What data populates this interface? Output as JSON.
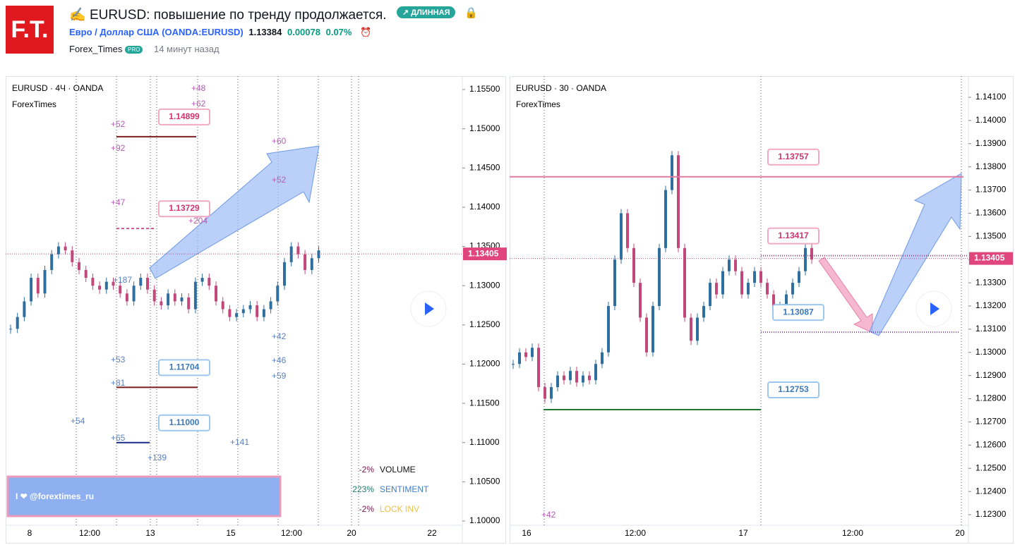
{
  "header": {
    "logo": "F.T.",
    "title": "EURUSD: повышение по тренду продолжается.",
    "badge": "ДЛИННАЯ",
    "symbol_name": "Евро / Доллар США",
    "symbol_code": "(OANDA:EURUSD)",
    "price": "1.13384",
    "change": "0.00078",
    "change_pct": "0.07%",
    "author": "Forex_Times",
    "author_badge": "PRO",
    "time_ago": "14 минут назад"
  },
  "chart_data": [
    {
      "type": "candlestick",
      "title": "EURUSD · 4Ч · OANDA",
      "subtitle": "ForexTimes",
      "ylim": [
        1.1,
        1.155
      ],
      "yticks": [
        {
          "value": 1.155,
          "label": "1.15500"
        },
        {
          "value": 1.15,
          "label": "1.15000"
        },
        {
          "value": 1.145,
          "label": "1.14500"
        },
        {
          "value": 1.14,
          "label": "1.14000"
        },
        {
          "value": 1.135,
          "label": "1.13500"
        },
        {
          "value": 1.13,
          "label": "1.13000"
        },
        {
          "value": 1.125,
          "label": "1.12500"
        },
        {
          "value": 1.12,
          "label": "1.12000"
        },
        {
          "value": 1.115,
          "label": "1.11500"
        },
        {
          "value": 1.11,
          "label": "1.11000"
        },
        {
          "value": 1.105,
          "label": "1.10500"
        },
        {
          "value": 1.1,
          "label": "1.10000"
        }
      ],
      "xlabels": [
        "8",
        "12:00",
        "13",
        "15",
        "12:00",
        "20",
        "22"
      ],
      "current_price": 1.13405,
      "up_color": "#2f6f9f",
      "down_color": "#c2477a",
      "values": [
        1.1245,
        1.126,
        1.128,
        1.131,
        1.129,
        1.132,
        1.134,
        1.135,
        1.1345,
        1.133,
        1.132,
        1.131,
        1.13,
        1.1295,
        1.1305,
        1.13,
        1.129,
        1.128,
        1.13,
        1.131,
        1.1295,
        1.128,
        1.1275,
        1.129,
        1.128,
        1.1285,
        1.127,
        1.1305,
        1.131,
        1.13,
        1.128,
        1.127,
        1.126,
        1.1265,
        1.127,
        1.1275,
        1.126,
        1.127,
        1.128,
        1.13,
        1.133,
        1.135,
        1.134,
        1.132,
        1.1335,
        1.1345
      ],
      "levels": [
        {
          "value": 1.14899,
          "color": "#7b1e1e"
        },
        {
          "value": 1.13729,
          "color": "#d0578a"
        },
        {
          "value": 1.11704,
          "color": "#7b1e1e"
        },
        {
          "value": {
            "value": 1.11,
            "label": "1.11000"
          },
          "color": "#1a2a8a"
        }
      ],
      "annotations": [
        "+52",
        "+92",
        "+47",
        "+48",
        "+62",
        "+60",
        "+52",
        "+204",
        "+187",
        "+42",
        "+46",
        "+59",
        "+53",
        "+81",
        "+54",
        "+65",
        "+139",
        "+141"
      ],
      "stats": [
        {
          "pct": "-2%",
          "name": "VOLUME"
        },
        {
          "pct": "223%",
          "name": "SENTIMENT"
        },
        {
          "pct": "-2%",
          "name": "LOCK INV"
        }
      ],
      "watermark": "I ❤ @forextimes_ru"
    },
    {
      "type": "candlestick",
      "title": "EURUSD · 30 · OANDA",
      "subtitle": "ForexTimes",
      "ylim": [
        1.123,
        1.141
      ],
      "yticks": [
        {
          "value": 1.141,
          "label": "1.14100"
        },
        {
          "value": 1.14,
          "label": "1.14000"
        },
        {
          "value": 1.139,
          "label": "1.13900"
        },
        {
          "value": 1.138,
          "label": "1.13800"
        },
        {
          "value": 1.137,
          "label": "1.13700"
        },
        {
          "value": 1.136,
          "label": "1.13600"
        },
        {
          "value": 1.135,
          "label": "1.13500"
        },
        {
          "value": 1.134,
          "label": "1.13400"
        },
        {
          "value": 1.133,
          "label": "1.13300"
        },
        {
          "value": 1.132,
          "label": "1.13200"
        },
        {
          "value": 1.131,
          "label": "1.13100"
        },
        {
          "value": 1.13,
          "label": "1.13000"
        },
        {
          "value": 1.129,
          "label": "1.12900"
        },
        {
          "value": 1.128,
          "label": "1.12800"
        },
        {
          "value": 1.127,
          "label": "1.12700"
        },
        {
          "value": 1.126,
          "label": "1.12600"
        },
        {
          "value": 1.125,
          "label": "1.12500"
        },
        {
          "value": 1.124,
          "label": "1.12400"
        },
        {
          "value": 1.123,
          "label": "1.12300"
        }
      ],
      "xlabels": [
        "16",
        "12:00",
        "17",
        "12:00",
        "20"
      ],
      "current_price": 1.13405,
      "up_color": "#2f6f9f",
      "down_color": "#c2477a",
      "values": [
        1.1295,
        1.13,
        1.1298,
        1.1302,
        1.1285,
        1.128,
        1.1285,
        1.129,
        1.1288,
        1.1292,
        1.1287,
        1.129,
        1.1288,
        1.1295,
        1.13,
        1.132,
        1.134,
        1.136,
        1.1345,
        1.133,
        1.1315,
        1.13,
        1.132,
        1.1345,
        1.137,
        1.1385,
        1.1345,
        1.1315,
        1.1305,
        1.1315,
        1.132,
        1.133,
        1.1325,
        1.1335,
        1.134,
        1.1335,
        1.1325,
        1.133,
        1.1335,
        1.133,
        1.1325,
        1.132,
        1.132,
        1.1325,
        1.133,
        1.1335,
        1.1345,
        1.134
      ],
      "levels": [
        {
          "value": 1.13757,
          "color": "#e07a9e"
        },
        {
          "value": 1.13417,
          "color": "#a04080"
        },
        {
          "value": 1.13087,
          "color": "#7a4aa0"
        },
        {
          "value": 1.12753,
          "color": "#1f7a2f"
        }
      ],
      "annotations": [
        "+42"
      ]
    }
  ]
}
